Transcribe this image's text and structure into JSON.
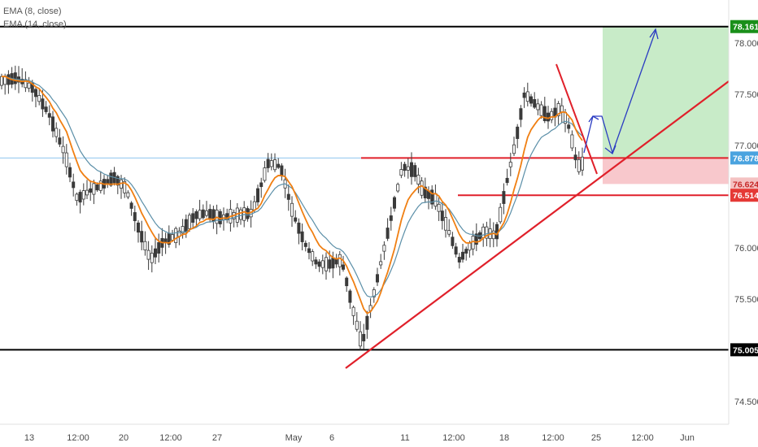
{
  "legend": {
    "ema8": "EMA (8, close)",
    "ema14": "EMA (14, close)"
  },
  "y_axis": {
    "ticks": [
      "78.000",
      "77.500",
      "77.000",
      "76.500",
      "76.000",
      "75.500",
      "75.000",
      "74.500"
    ],
    "tick_values": [
      78.0,
      77.5,
      77.0,
      76.5,
      76.0,
      75.5,
      75.0,
      74.5
    ]
  },
  "x_axis": {
    "ticks": [
      "13",
      "12:00",
      "20",
      "12:00",
      "27",
      "May",
      "6",
      "11",
      "12:00",
      "18",
      "12:00",
      "25",
      "12:00",
      "Jun"
    ]
  },
  "price_tags": [
    {
      "label": "78.161",
      "value": 78.161,
      "bg": "#1a8f1a",
      "fg": "#ffffff"
    },
    {
      "label": "76.878",
      "value": 76.878,
      "bg": "#4aa3df",
      "fg": "#ffffff"
    },
    {
      "label": "76.624",
      "value": 76.624,
      "bg": "#f4c2c2",
      "fg": "#c62828"
    },
    {
      "label": "76.514",
      "value": 76.514,
      "bg": "#e53935",
      "fg": "#ffffff"
    },
    {
      "label": "75.005",
      "value": 75.005,
      "bg": "#000000",
      "fg": "#ffffff"
    }
  ],
  "levels": {
    "resistance": 78.161,
    "current": 76.878,
    "stop": 76.624,
    "support": 76.514,
    "floor": 75.005
  },
  "colors": {
    "ema8": "#f07f12",
    "ema14": "#5b8fa8",
    "trendline": "#e0202a",
    "arrow": "#2a3bc2",
    "profit_zone": "#c8ebc8",
    "loss_zone": "#f8c8cc",
    "candle": "#3a3a3a"
  }
}
